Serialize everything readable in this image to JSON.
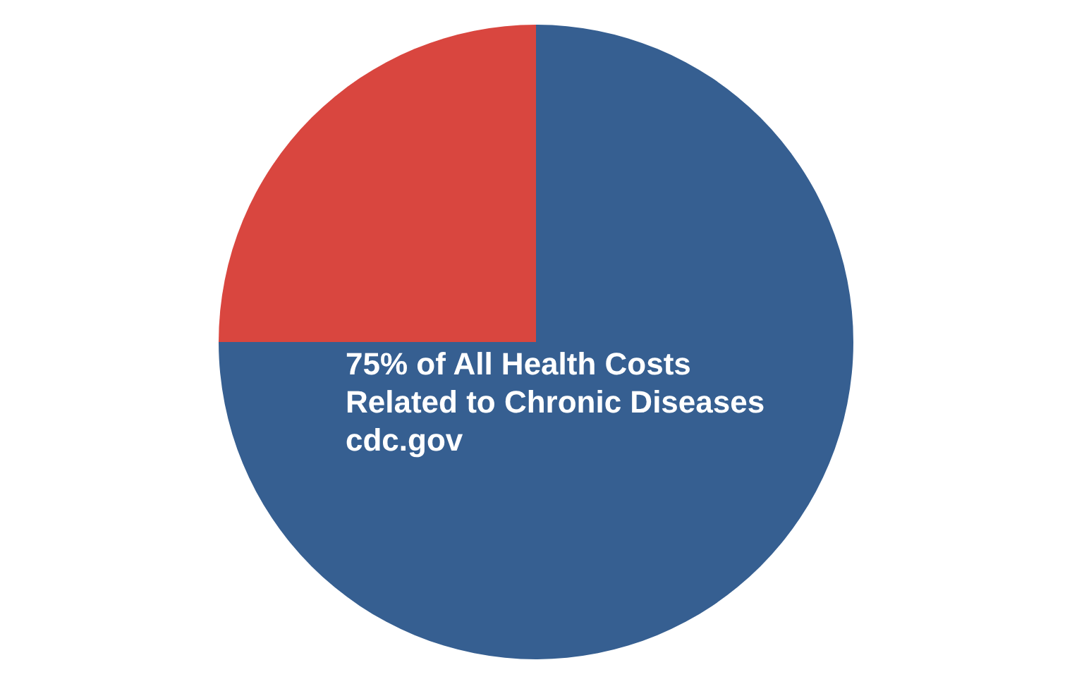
{
  "chart_data": {
    "type": "pie",
    "categories": [
      null,
      null
    ],
    "values": [
      75,
      25
    ],
    "colors": [
      "#365f91",
      "#d9463f"
    ],
    "annotations": [
      "75% of All Health Costs Related to Chronic Diseases",
      "cdc.gov"
    ]
  }
}
